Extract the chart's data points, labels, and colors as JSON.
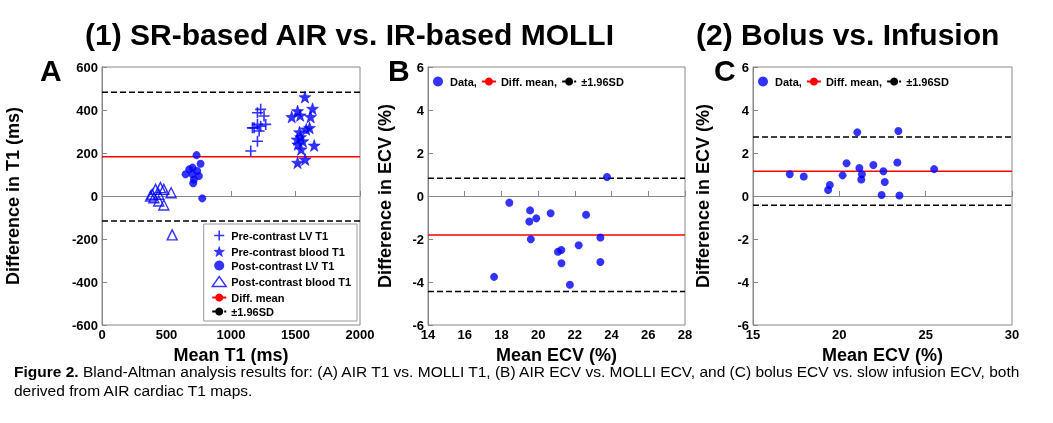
{
  "chart_data": [
    {
      "type": "scatter",
      "title": "(1) SR-based AIR vs. IR-based MOLLI",
      "xlabel": "Mean T1 (ms)",
      "ylabel": "Difference in T1 (ms)",
      "xlim": [
        0,
        2000
      ],
      "xticks": [
        0,
        500,
        1000,
        1500,
        2000
      ],
      "ylim": [
        -600,
        600
      ],
      "yticks": [
        -600,
        -400,
        -200,
        0,
        200,
        400,
        600
      ],
      "legend": "bottom right",
      "annotations": [
        "A",
        "Figure 2. Bland-Altman  analysis results for: (A) AIR T1 vs. MOLLI T1, (B) AIR ECV vs. MOLLI ECV, and (C) bolus ECV vs. slow infusion ECV, both derived from AIR cardiac T1 maps."
      ],
      "series": [
        {
          "name": "Pre-contrast LV T1",
          "color": "#0000ff",
          "marker": "cross",
          "x": [
            1153,
            1166,
            1230,
            1205,
            1256,
            1205,
            1269,
            1179,
            1218,
            1230,
            1205
          ],
          "values": [
            209,
            317,
            403,
            387,
            372,
            333,
            333,
            317,
            302,
            325,
            255
          ]
        },
        {
          "name": "Pre-contrast blood T1",
          "color": "#0000ff",
          "marker": "star",
          "x": [
            1573,
            1632,
            1516,
            1471,
            1536,
            1617,
            1609,
            1583,
            1531,
            1539,
            1513,
            1557,
            1518,
            1645,
            1575,
            1516,
            1544
          ],
          "values": [
            460,
            406,
            395,
            368,
            375,
            368,
            317,
            310,
            297,
            274,
            263,
            255,
            240,
            235,
            170,
            155,
            217
          ]
        },
        {
          "name": "Post-contrast LV T1",
          "color": "#0000ff",
          "marker": "circle",
          "x": [
            733,
            648,
            702,
            676,
            738,
            764,
            712,
            751,
            707,
            777,
            700
          ],
          "values": [
            190,
            101,
            132,
            124,
            116,
            150,
            77,
            93,
            59,
            -11,
            101
          ]
        },
        {
          "name": "Post-contrast blood T1",
          "color": "#0000ff",
          "marker": "triangle",
          "x": [
            376,
            415,
            453,
            479,
            536,
            440,
            402,
            440,
            479,
            544,
            389
          ],
          "values": [
            0,
            31,
            39,
            31,
            15,
            8,
            -8,
            -23,
            -42,
            -181,
            8
          ]
        },
        {
          "name": "Diff. mean",
          "type": "line",
          "color": "#ff0000",
          "marker": "none",
          "line_style": "solid",
          "x": [
            0,
            2000
          ],
          "values": [
            183,
            183
          ]
        },
        {
          "name": "±1.96SD",
          "type": "line",
          "color": "#000000",
          "marker": "none",
          "line_style": "dashed",
          "x": [
            0,
            2000
          ],
          "values": [
            483,
            483
          ]
        },
        {
          "type": "line",
          "color": "#000000",
          "marker": "none",
          "line_style": "dashed",
          "x": [
            0,
            2000
          ],
          "values": [
            -116,
            -116
          ]
        }
      ]
    },
    {
      "type": "scatter",
      "xlabel": "Mean ECV (%)",
      "ylabel": "Difference in ECV (%)",
      "xlim": [
        14,
        28
      ],
      "xticks": [
        14,
        16,
        18,
        20,
        22,
        24,
        26,
        28
      ],
      "ylim": [
        -6,
        6
      ],
      "yticks": [
        -6,
        -4,
        -2,
        0,
        2,
        4,
        6
      ],
      "legend": "top",
      "annotations": [
        "B"
      ],
      "series": [
        {
          "name": "Data,",
          "color": "#0000ff",
          "marker": "circle",
          "x": [
            17.6,
            18.43,
            19.56,
            19.52,
            19.9,
            19.6,
            20.68,
            21.08,
            21.26,
            21.27,
            21.73,
            22.21,
            22.61,
            23.39,
            23.39,
            23.75
          ],
          "values": [
            -3.76,
            -0.31,
            -0.67,
            -1.19,
            -1.04,
            -2.01,
            -0.8,
            -2.59,
            -2.51,
            -3.13,
            -4.13,
            -2.29,
            -0.87,
            -1.93,
            -3.07,
            0.88
          ]
        },
        {
          "name": "Diff. mean,",
          "type": "line",
          "color": "#ff0000",
          "marker": "none",
          "line_style": "solid",
          "x": [
            14,
            28
          ],
          "values": [
            -1.81,
            -1.81
          ]
        },
        {
          "name": "±1.96SD",
          "type": "line",
          "color": "#000000",
          "marker": "none",
          "line_style": "dashed",
          "x": [
            14,
            28
          ],
          "values": [
            0.82,
            0.82
          ]
        },
        {
          "type": "line",
          "color": "#000000",
          "marker": "none",
          "line_style": "dashed",
          "x": [
            14,
            28
          ],
          "values": [
            -4.44,
            -4.44
          ]
        }
      ]
    },
    {
      "type": "scatter",
      "title": "(2) Bolus vs. Infusion",
      "xlabel": "Mean ECV (%)",
      "ylabel": "Difference in ECV (%)",
      "xlim": [
        15,
        30
      ],
      "xticks": [
        15,
        20,
        25,
        30
      ],
      "ylim": [
        -6,
        6
      ],
      "yticks": [
        -6,
        -4,
        -2,
        0,
        2,
        4,
        6
      ],
      "legend": "top",
      "annotations": [
        "C"
      ],
      "series": [
        {
          "name": "Data,",
          "color": "#0000ff",
          "marker": "circle",
          "x": [
            17.13,
            17.94,
            19.35,
            19.45,
            20.19,
            20.42,
            21.04,
            21.16,
            21.31,
            21.27,
            21.97,
            22.55,
            22.63,
            22.45,
            23.36,
            23.42,
            23.48,
            25.49
          ],
          "values": [
            1.01,
            0.91,
            0.28,
            0.51,
            0.96,
            1.52,
            2.96,
            1.3,
            1.01,
            0.77,
            1.44,
            1.15,
            0.65,
            0.05,
            1.56,
            3.02,
            0.02,
            1.25
          ]
        },
        {
          "name": "Diff. mean,",
          "type": "line",
          "color": "#ff0000",
          "marker": "none",
          "line_style": "solid",
          "x": [
            15,
            30
          ],
          "values": [
            1.15,
            1.15
          ]
        },
        {
          "name": "±1.96SD",
          "type": "line",
          "color": "#000000",
          "marker": "none",
          "line_style": "dashed",
          "x": [
            15,
            30
          ],
          "values": [
            2.74,
            2.74
          ]
        },
        {
          "type": "line",
          "color": "#000000",
          "marker": "none",
          "line_style": "dashed",
          "x": [
            15,
            30
          ],
          "values": [
            -0.43,
            -0.43
          ]
        }
      ]
    }
  ]
}
